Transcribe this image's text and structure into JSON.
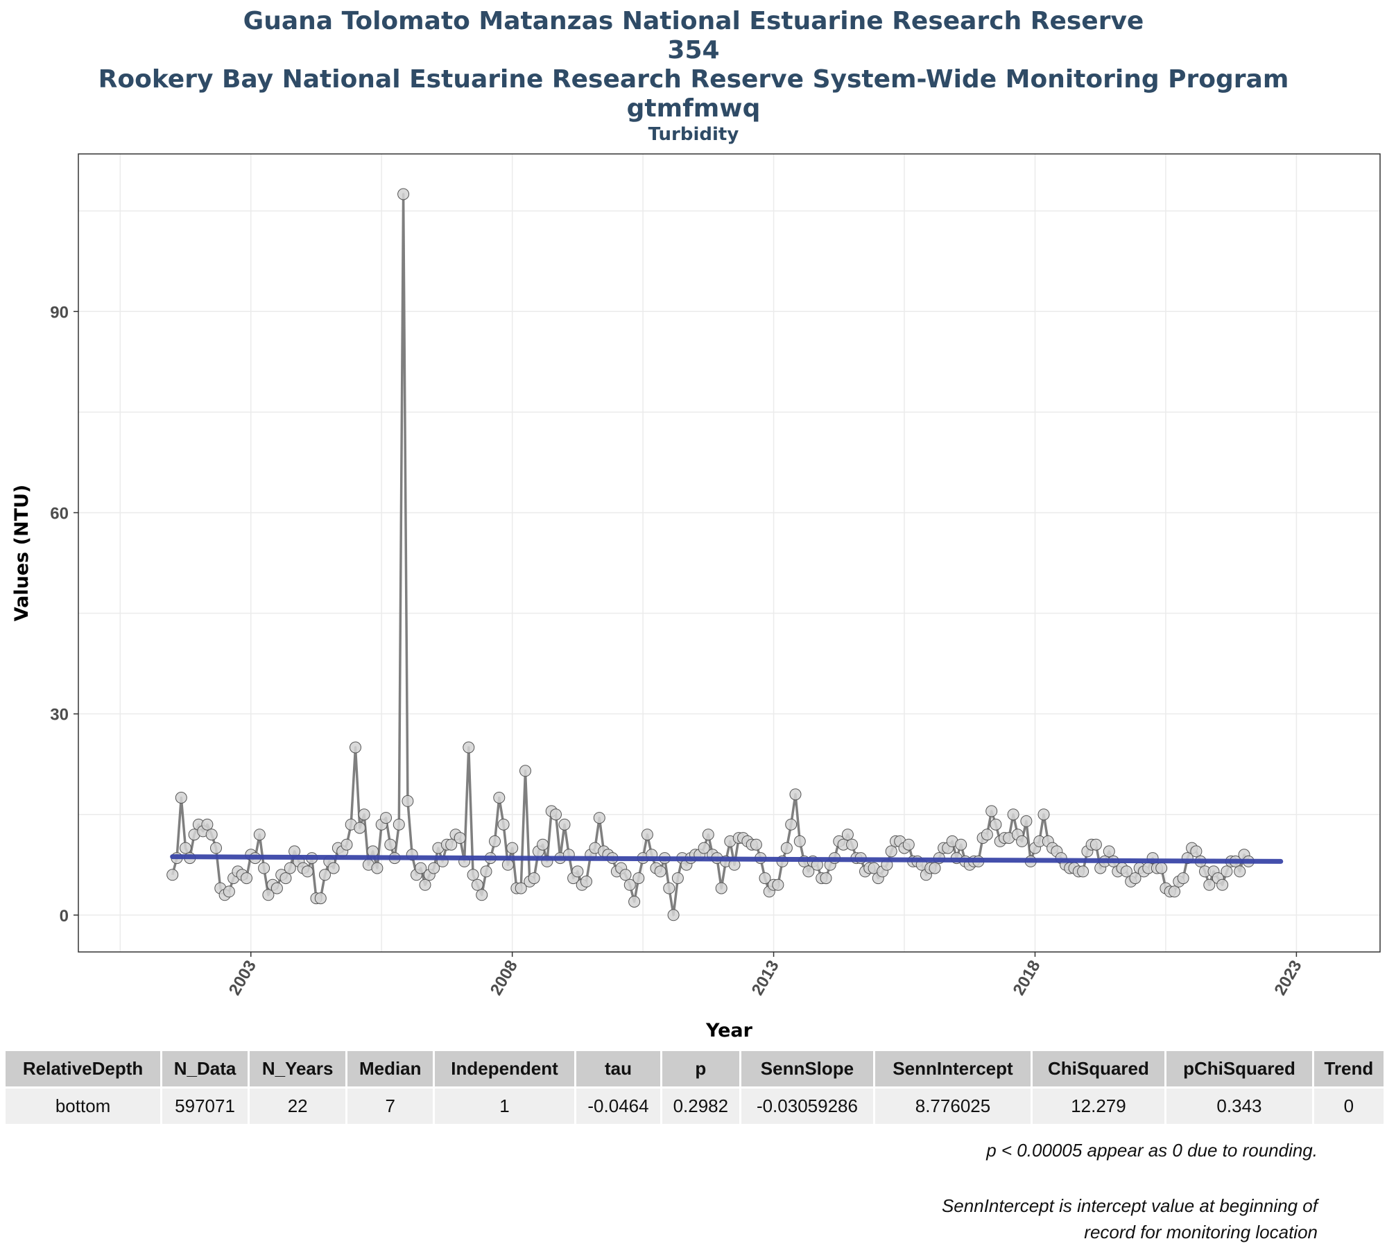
{
  "chart_data": {
    "type": "line",
    "title_lines": [
      "Guana Tolomato Matanzas National Estuarine Research Reserve",
      "354",
      "Rookery Bay National Estuarine Research Reserve System-Wide Monitoring Program",
      "gtmfmwq"
    ],
    "subtitle": "Turbidity",
    "xlabel": "Year",
    "ylabel": "Values (NTU)",
    "xlim": [
      1999.7,
      2024.6
    ],
    "ylim": [
      -5.5,
      113.5
    ],
    "x_ticks": [
      "2003",
      "2008",
      "2013",
      "2018",
      "2023"
    ],
    "y_ticks": [
      0,
      30,
      60,
      90
    ],
    "grid": true,
    "series": [
      {
        "values_x_start": 2001.5,
        "values_x_step": 0.0833333,
        "values": [
          6,
          8.5,
          17.5,
          10,
          8.5,
          12,
          13.5,
          12.5,
          13.5,
          12,
          10,
          4,
          3,
          3.5,
          5.5,
          6.5,
          6,
          5.5,
          9,
          8.5,
          12,
          7,
          3,
          4.5,
          4,
          6,
          5.5,
          7,
          9.5,
          8,
          7,
          6.5,
          8.5,
          2.5,
          2.5,
          6,
          8,
          7,
          10,
          9.5,
          10.5,
          13.5,
          25,
          13,
          15,
          7.5,
          9.5,
          7,
          13.5,
          14.5,
          10.5,
          8.5,
          13.5,
          107.5,
          17,
          9,
          6,
          7,
          4.5,
          6,
          7,
          10,
          8,
          10.5,
          10.5,
          12,
          11.5,
          8,
          25,
          6,
          4.5,
          3,
          6.5,
          8.5,
          11,
          17.5,
          13.5,
          7.5,
          10,
          4,
          4,
          21.5,
          5,
          5.5,
          9.5,
          10.5,
          8,
          15.5,
          15,
          8.5,
          13.5,
          9,
          5.5,
          6.5,
          4.5,
          5,
          9,
          10,
          14.5,
          9.5,
          9,
          8.5,
          6.5,
          7,
          6,
          4.5,
          2,
          5.5,
          8.5,
          12,
          9,
          7,
          6.5,
          8.5,
          4,
          0,
          5.5,
          8.5,
          7.5,
          8.5,
          9,
          9,
          10,
          12,
          9,
          8.5,
          4,
          8,
          11,
          7.5,
          11.5,
          11.5,
          11,
          10.5,
          10.5,
          8.5,
          5.5,
          3.5,
          4.5,
          4.5,
          8,
          10,
          13.5,
          18,
          11,
          8,
          6.5,
          8,
          7.5,
          5.5,
          5.5,
          7.5,
          8.5,
          11,
          10.5,
          12,
          10.5,
          8.5,
          8.5,
          6.5,
          7,
          7,
          5.5,
          6.5,
          7.5,
          9.5,
          11,
          11,
          10,
          10.5,
          8,
          8,
          7.5,
          6,
          7,
          7,
          8.5,
          10,
          10,
          11,
          8.5,
          10.5,
          8,
          7.5,
          8,
          8,
          11.5,
          12,
          15.5,
          13.5,
          11,
          11.5,
          11.5,
          15,
          12,
          11,
          14,
          8,
          10,
          11,
          15,
          11,
          10,
          9.5,
          8.5,
          7.5,
          7,
          7,
          6.5,
          6.5,
          9.5,
          10.5,
          10.5,
          7,
          8,
          9.5,
          8,
          6.5,
          7,
          6.5,
          5,
          5.5,
          7,
          6.5,
          7,
          8.5,
          7,
          7,
          4,
          3.5,
          3.5,
          5,
          5.5,
          8.5,
          10,
          9.5,
          8,
          6.5,
          4.5,
          6.5,
          5.5,
          4.5,
          6.5,
          8,
          8,
          6.5,
          9,
          8
        ]
      }
    ],
    "trend_line": {
      "x": [
        2001.5,
        2022.7
      ],
      "y": [
        8.7,
        8.0
      ]
    }
  },
  "colors": {
    "title": "#2f4b66",
    "series_line": "#7f7f7f",
    "points_fill": "#d4d4d4",
    "points_stroke": "#555555",
    "trend": "#3a46a8",
    "grid": "#ebebeb",
    "panel_border": "#333333"
  },
  "stats_table": {
    "headers": [
      "RelativeDepth",
      "N_Data",
      "N_Years",
      "Median",
      "Independent",
      "tau",
      "p",
      "SennSlope",
      "SennIntercept",
      "ChiSquared",
      "pChiSquared",
      "Trend"
    ],
    "row": [
      "bottom",
      "597071",
      "22",
      "7",
      "1",
      "-0.0464",
      "0.2982",
      "-0.03059286",
      "8.776025",
      "12.279",
      "0.343",
      "0"
    ]
  },
  "notes": {
    "note1": "p < 0.00005 appear as 0 due to rounding.",
    "note2_line1": "SennIntercept is intercept value at beginning of",
    "note2_line2": "record for monitoring location"
  }
}
